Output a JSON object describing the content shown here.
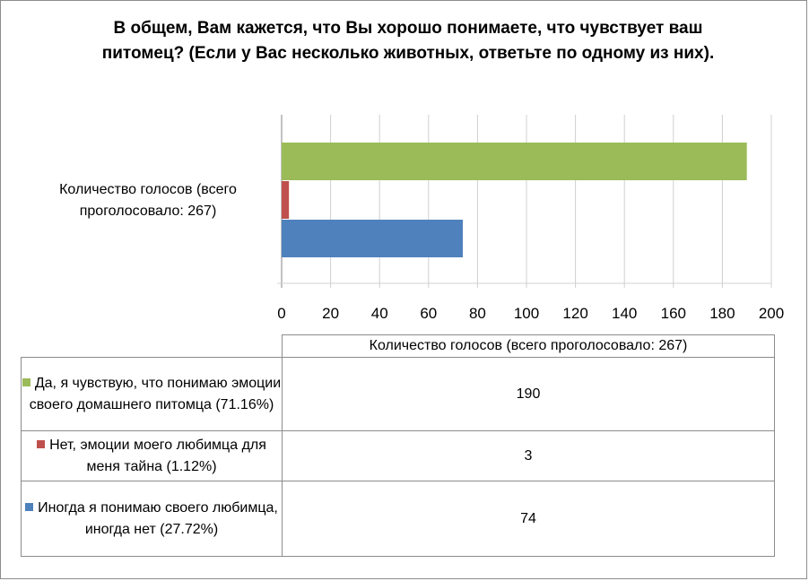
{
  "chart_data": {
    "type": "bar",
    "orientation": "horizontal",
    "title": "В общем, Вам кажется, что Вы хорошо понимаете, что чувствует ваш питомец? (Если у Вас несколько животных, ответьте по одному из них).",
    "categories": [
      "Количество голосов (всего проголосовало: 267)"
    ],
    "series": [
      {
        "name": "Да, я чувствую, что понимаю эмоции своего домашнего питомца  (71.16%)",
        "values": [
          190
        ],
        "color": "#9bbb59"
      },
      {
        "name": "Нет, эмоции моего любимца для меня тайна  (1.12%)",
        "values": [
          3
        ],
        "color": "#c0504d"
      },
      {
        "name": "Иногда я понимаю своего любимца, иногда нет (27.72%)",
        "values": [
          74
        ],
        "color": "#4f81bd"
      }
    ],
    "xlim": [
      0,
      200
    ],
    "xticks": [
      0,
      20,
      40,
      60,
      80,
      100,
      120,
      140,
      160,
      180,
      200
    ],
    "grid": true,
    "legend": "data table below chart"
  },
  "table": {
    "header": "Количество голосов (всего проголосовало: 267)",
    "rows": [
      {
        "label": "Да, я чувствую, что понимаю эмоции своего домашнего питомца  (71.16%)",
        "value": "190",
        "color": "#9bbb59"
      },
      {
        "label": "Нет, эмоции моего любимца для меня тайна  (1.12%)",
        "value": "3",
        "color": "#c0504d"
      },
      {
        "label": "Иногда я понимаю своего любимца, иногда нет (27.72%)",
        "value": "74",
        "color": "#4f81bd"
      }
    ]
  }
}
